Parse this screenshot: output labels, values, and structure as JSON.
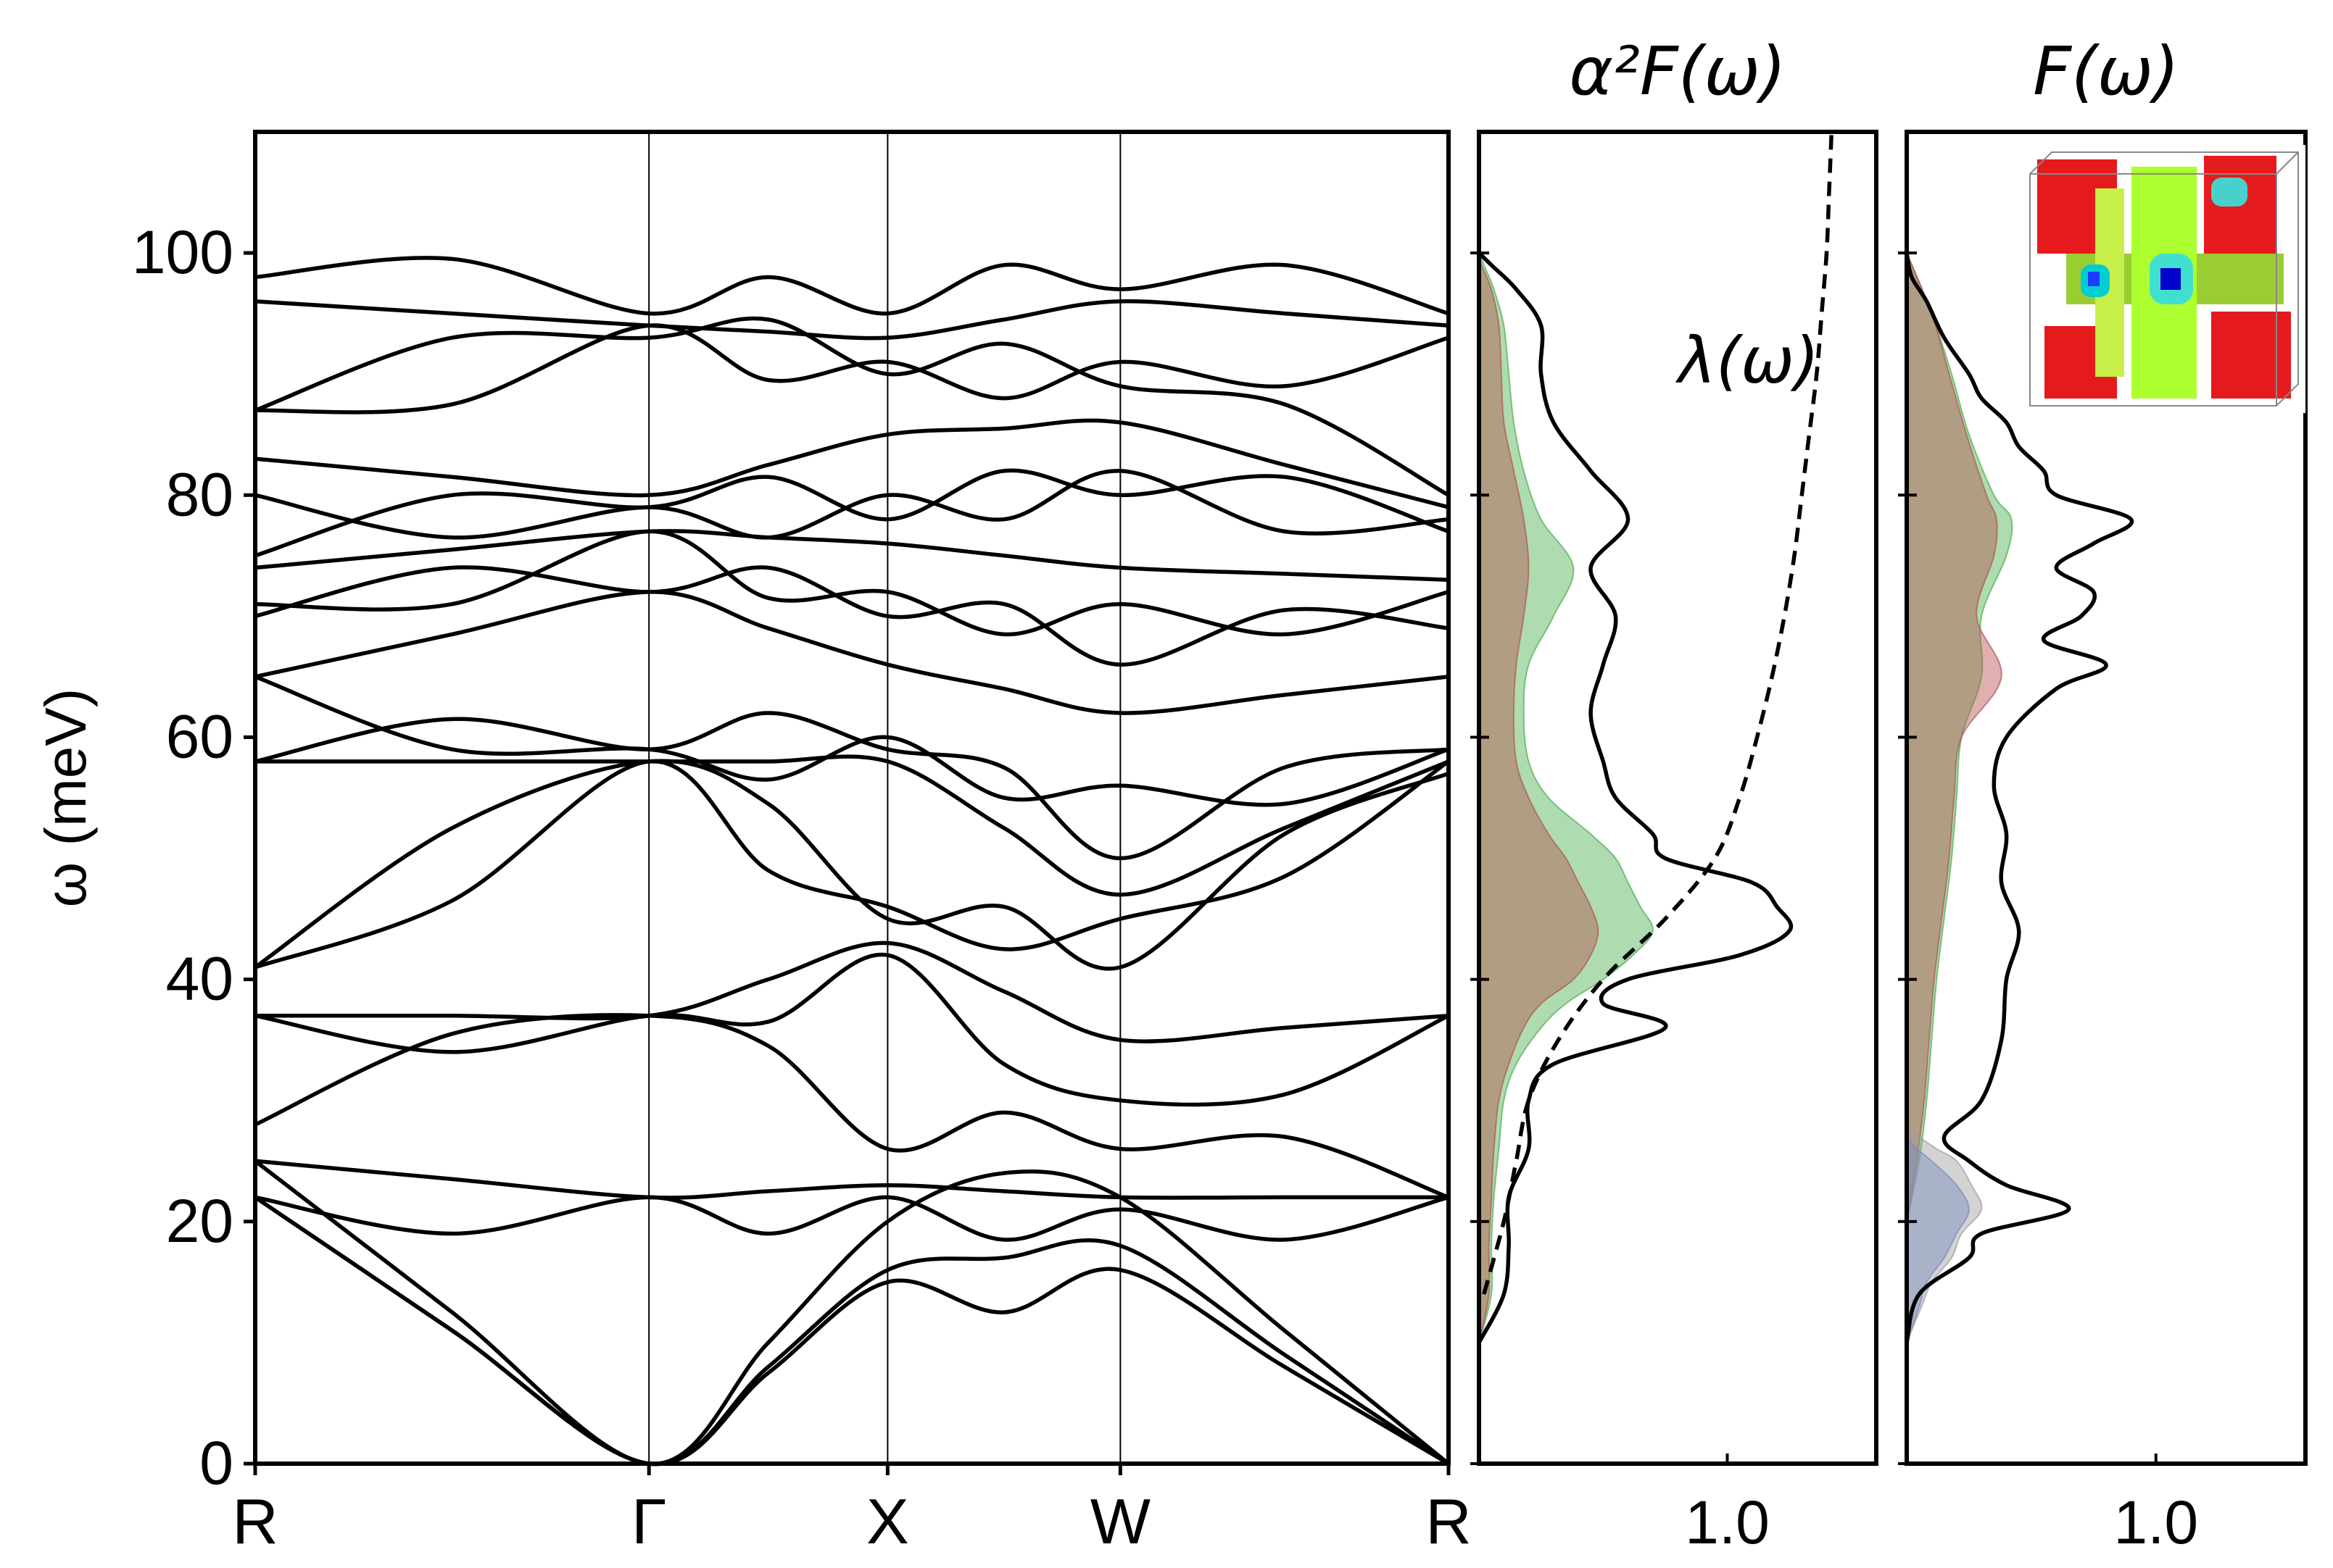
{
  "chart_data": [
    {
      "type": "line",
      "title": "",
      "ylabel": "ω (meV)",
      "xlabel": "",
      "ylim": [
        0,
        110
      ],
      "yticks": [
        0,
        20,
        40,
        60,
        80,
        100
      ],
      "xticks": [
        "R",
        "Γ",
        "X",
        "W",
        "R"
      ],
      "grid": "vertical lines at high-symmetry points",
      "line_color": "#000000",
      "series": [
        {
          "x": [
            "R",
            "Γ",
            "X",
            "W",
            "R"
          ],
          "values": [
            22,
            0,
            15,
            16,
            0
          ]
        },
        {
          "x": [
            "R",
            "Γ",
            "X",
            "W",
            "R"
          ],
          "values": [
            22,
            0,
            16,
            18,
            0
          ]
        },
        {
          "x": [
            "R",
            "Γ",
            "X",
            "W",
            "R"
          ],
          "values": [
            25,
            0,
            20,
            22,
            0
          ]
        },
        {
          "x": [
            "R",
            "Γ",
            "X",
            "W",
            "R"
          ],
          "values": [
            22,
            22,
            22,
            21,
            22
          ]
        },
        {
          "x": [
            "R",
            "Γ",
            "X",
            "W",
            "R"
          ],
          "values": [
            25,
            22,
            23,
            22,
            22
          ]
        },
        {
          "x": [
            "R",
            "Γ",
            "X",
            "W",
            "R"
          ],
          "values": [
            28,
            37,
            26,
            26,
            22
          ]
        },
        {
          "x": [
            "R",
            "Γ",
            "X",
            "W",
            "R"
          ],
          "values": [
            37,
            37,
            42,
            30,
            37
          ]
        },
        {
          "x": [
            "R",
            "Γ",
            "X",
            "W",
            "R"
          ],
          "values": [
            37,
            37,
            43,
            35,
            37
          ]
        },
        {
          "x": [
            "R",
            "Γ",
            "X",
            "W",
            "R"
          ],
          "values": [
            41,
            58,
            45,
            41,
            57
          ]
        },
        {
          "x": [
            "R",
            "Γ",
            "X",
            "W",
            "R"
          ],
          "values": [
            41,
            58,
            46,
            45,
            58
          ]
        },
        {
          "x": [
            "R",
            "Γ",
            "X",
            "W",
            "R"
          ],
          "values": [
            58,
            58,
            58,
            47,
            58
          ]
        },
        {
          "x": [
            "R",
            "Γ",
            "X",
            "W",
            "R"
          ],
          "values": [
            58,
            59,
            59,
            50,
            59
          ]
        },
        {
          "x": [
            "R",
            "Γ",
            "X",
            "W",
            "R"
          ],
          "values": [
            65,
            59,
            60,
            56,
            59
          ]
        },
        {
          "x": [
            "R",
            "Γ",
            "X",
            "W",
            "R"
          ],
          "values": [
            65,
            72,
            66,
            62,
            65
          ]
        },
        {
          "x": [
            "R",
            "Γ",
            "X",
            "W",
            "R"
          ],
          "values": [
            70,
            72,
            70,
            66,
            69
          ]
        },
        {
          "x": [
            "R",
            "Γ",
            "X",
            "W",
            "R"
          ],
          "values": [
            71,
            77,
            72,
            71,
            72
          ]
        },
        {
          "x": [
            "R",
            "Γ",
            "X",
            "W",
            "R"
          ],
          "values": [
            74,
            77,
            76,
            74,
            73
          ]
        },
        {
          "x": [
            "R",
            "Γ",
            "X",
            "W",
            "R"
          ],
          "values": [
            75,
            79,
            78,
            80,
            77
          ]
        },
        {
          "x": [
            "R",
            "Γ",
            "X",
            "W",
            "R"
          ],
          "values": [
            80,
            79,
            80,
            82,
            78
          ]
        },
        {
          "x": [
            "R",
            "Γ",
            "X",
            "W",
            "R"
          ],
          "values": [
            83,
            80,
            85,
            86,
            79
          ]
        },
        {
          "x": [
            "R",
            "Γ",
            "X",
            "W",
            "R"
          ],
          "values": [
            87,
            93,
            90,
            89,
            80
          ]
        },
        {
          "x": [
            "R",
            "Γ",
            "X",
            "W",
            "R"
          ],
          "values": [
            87,
            94,
            91,
            91,
            93
          ]
        },
        {
          "x": [
            "R",
            "Γ",
            "X",
            "W",
            "R"
          ],
          "values": [
            96,
            94,
            93,
            96,
            94
          ]
        },
        {
          "x": [
            "R",
            "Γ",
            "X",
            "W",
            "R"
          ],
          "values": [
            98,
            95,
            95,
            97,
            95
          ]
        }
      ]
    },
    {
      "type": "area",
      "title": "α²F(ω)",
      "annotations": [
        "λ(ω)"
      ],
      "xticks": [
        "1.0"
      ],
      "xlim": [
        0,
        1.6
      ],
      "ylim": [
        0,
        110
      ],
      "colors": {
        "total": "#000000",
        "component_green": "#4caf50",
        "component_red": "#b5534f",
        "lambda": "#000000"
      },
      "series": [
        {
          "role": "total",
          "y": [
            10,
            14,
            18,
            22,
            26,
            30,
            33,
            36,
            38,
            40,
            42,
            44,
            46,
            48,
            50,
            52,
            55,
            58,
            62,
            66,
            70,
            74,
            78,
            82,
            86,
            90,
            94,
            97,
            99,
            100
          ],
          "values": [
            0.0,
            0.1,
            0.12,
            0.12,
            0.2,
            0.2,
            0.3,
            0.75,
            0.5,
            0.6,
            1.05,
            1.25,
            1.2,
            1.1,
            0.75,
            0.7,
            0.55,
            0.5,
            0.45,
            0.5,
            0.55,
            0.45,
            0.6,
            0.45,
            0.3,
            0.25,
            0.25,
            0.15,
            0.05,
            0.0
          ]
        },
        {
          "role": "component_green",
          "y": [
            10,
            14,
            18,
            22,
            26,
            30,
            33,
            36,
            38,
            40,
            42,
            44,
            46,
            48,
            50,
            52,
            55,
            58,
            62,
            66,
            70,
            74,
            78,
            82,
            86,
            90,
            94,
            97,
            99,
            100
          ],
          "values": [
            0.0,
            0.05,
            0.05,
            0.06,
            0.08,
            0.1,
            0.15,
            0.25,
            0.35,
            0.5,
            0.62,
            0.7,
            0.65,
            0.6,
            0.55,
            0.45,
            0.28,
            0.2,
            0.18,
            0.2,
            0.3,
            0.38,
            0.25,
            0.18,
            0.14,
            0.12,
            0.1,
            0.06,
            0.02,
            0.0
          ]
        },
        {
          "role": "component_red",
          "y": [
            10,
            14,
            18,
            22,
            26,
            30,
            33,
            36,
            38,
            40,
            42,
            44,
            46,
            48,
            50,
            52,
            55,
            58,
            62,
            66,
            70,
            74,
            78,
            82,
            86,
            90,
            94,
            97,
            99,
            100
          ],
          "values": [
            0.0,
            0.04,
            0.04,
            0.05,
            0.06,
            0.08,
            0.12,
            0.18,
            0.25,
            0.38,
            0.45,
            0.48,
            0.45,
            0.4,
            0.35,
            0.28,
            0.2,
            0.15,
            0.14,
            0.15,
            0.18,
            0.2,
            0.18,
            0.14,
            0.1,
            0.09,
            0.08,
            0.05,
            0.01,
            0.0
          ]
        },
        {
          "role": "lambda",
          "y": [
            14,
            20,
            25,
            30,
            35,
            40,
            45,
            50,
            55,
            60,
            65,
            70,
            75,
            80,
            85,
            90,
            95,
            100,
            105,
            110
          ],
          "values": [
            0.02,
            0.1,
            0.15,
            0.2,
            0.32,
            0.5,
            0.75,
            0.95,
            1.05,
            1.12,
            1.18,
            1.23,
            1.27,
            1.3,
            1.33,
            1.36,
            1.38,
            1.4,
            1.41,
            1.42
          ]
        }
      ]
    },
    {
      "type": "area",
      "title": "F(ω)",
      "xticks": [
        "1.0"
      ],
      "xlim": [
        0,
        1.6
      ],
      "ylim": [
        0,
        110
      ],
      "colors": {
        "total": "#000000",
        "component_green": "#4caf50",
        "component_red": "#b5534f",
        "component_blue": "#5b7bdb",
        "component_gray": "#9e9e9e"
      },
      "series": [
        {
          "role": "total",
          "y": [
            10,
            14,
            17,
            19,
            21,
            23,
            25,
            27,
            30,
            35,
            40,
            44,
            48,
            52,
            56,
            60,
            64,
            66,
            68,
            70,
            72,
            74,
            76,
            78,
            80,
            82,
            84,
            86,
            88,
            90,
            93,
            96,
            98,
            100
          ],
          "values": [
            0.0,
            0.05,
            0.25,
            0.3,
            0.65,
            0.4,
            0.25,
            0.15,
            0.3,
            0.38,
            0.4,
            0.45,
            0.38,
            0.4,
            0.35,
            0.4,
            0.6,
            0.8,
            0.55,
            0.7,
            0.75,
            0.6,
            0.75,
            0.9,
            0.6,
            0.55,
            0.45,
            0.4,
            0.3,
            0.25,
            0.15,
            0.08,
            0.02,
            0.0
          ]
        },
        {
          "role": "component_green",
          "y": [
            20,
            25,
            30,
            35,
            40,
            45,
            50,
            55,
            60,
            65,
            70,
            75,
            78,
            80,
            85,
            90,
            95,
            100
          ],
          "values": [
            0.0,
            0.05,
            0.08,
            0.1,
            0.12,
            0.15,
            0.18,
            0.2,
            0.22,
            0.3,
            0.3,
            0.4,
            0.42,
            0.35,
            0.25,
            0.18,
            0.1,
            0.0
          ]
        },
        {
          "role": "component_red",
          "y": [
            20,
            25,
            30,
            35,
            40,
            45,
            50,
            55,
            60,
            65,
            70,
            75,
            78,
            80,
            85,
            90,
            95,
            100
          ],
          "values": [
            0.0,
            0.04,
            0.07,
            0.09,
            0.11,
            0.14,
            0.17,
            0.19,
            0.22,
            0.38,
            0.28,
            0.35,
            0.36,
            0.32,
            0.24,
            0.17,
            0.1,
            0.0
          ]
        },
        {
          "role": "component_blue",
          "y": [
            10,
            13,
            15,
            17,
            19,
            21,
            23,
            25,
            26,
            27
          ],
          "values": [
            0.0,
            0.05,
            0.08,
            0.15,
            0.2,
            0.25,
            0.2,
            0.1,
            0.04,
            0.0
          ]
        },
        {
          "role": "component_gray",
          "y": [
            10,
            13,
            15,
            17,
            19,
            21,
            23,
            25,
            26,
            27,
            28
          ],
          "values": [
            0.0,
            0.06,
            0.1,
            0.18,
            0.22,
            0.3,
            0.26,
            0.2,
            0.12,
            0.05,
            0.0
          ]
        }
      ]
    }
  ]
}
